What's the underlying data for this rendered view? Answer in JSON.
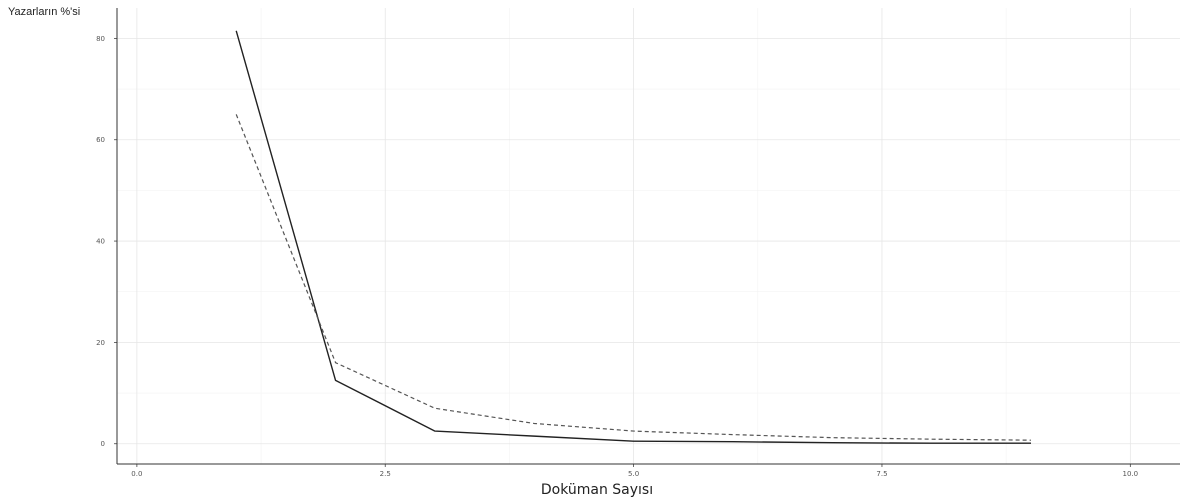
{
  "chart_data": {
    "type": "line",
    "xlabel": "Doküman Sayısı",
    "ylabel": "Yazarların %'si",
    "xlim": [
      -0.2,
      10.5
    ],
    "ylim": [
      -4,
      86
    ],
    "x_ticks": [
      0,
      2.5,
      5,
      7.5,
      10
    ],
    "x_tick_labels": [
      "0.0",
      "2.5",
      "5.0",
      "7.5",
      "10.0"
    ],
    "y_ticks": [
      0,
      20,
      40,
      60,
      80
    ],
    "y_tick_labels": [
      "0",
      "20",
      "40",
      "60",
      "80"
    ],
    "grid": true,
    "series": [
      {
        "style": "solid",
        "x": [
          1,
          2,
          3,
          4,
          5,
          6,
          7,
          8,
          9
        ],
        "y": [
          81.5,
          12.5,
          2.5,
          1.5,
          0.5,
          0.4,
          0.2,
          0.1,
          0.1
        ]
      },
      {
        "style": "dashed",
        "x": [
          1,
          2,
          3,
          4,
          5,
          6,
          7,
          8,
          9
        ],
        "y": [
          65,
          16,
          7,
          4,
          2.5,
          1.8,
          1.2,
          0.9,
          0.7
        ]
      }
    ]
  }
}
